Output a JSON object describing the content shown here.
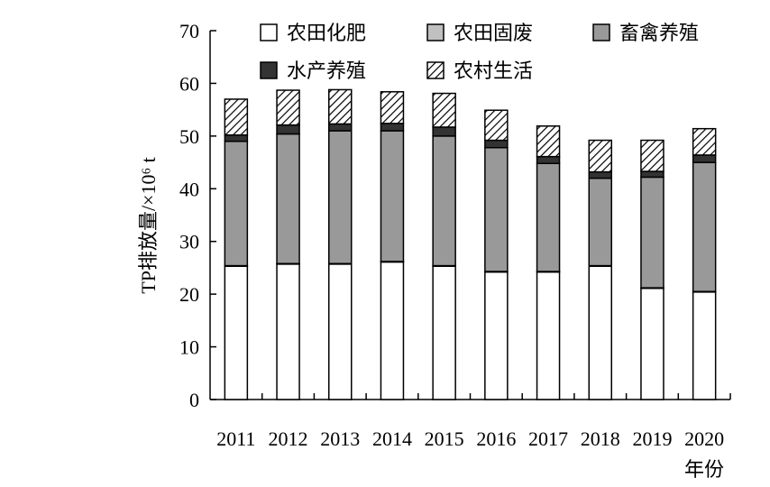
{
  "chart_data": {
    "type": "bar",
    "stacked": true,
    "categories": [
      "2011",
      "2012",
      "2013",
      "2014",
      "2015",
      "2016",
      "2017",
      "2018",
      "2019",
      "2020"
    ],
    "series": [
      {
        "name": "农田化肥",
        "color": "#ffffff",
        "pattern": "solid",
        "values": [
          25.3,
          25.7,
          25.7,
          26.1,
          25.3,
          24.2,
          24.2,
          25.3,
          21.1,
          20.4
        ]
      },
      {
        "name": "农田固废",
        "color": "#c0c0c0",
        "pattern": "solid",
        "values": [
          0.1,
          0.1,
          0.1,
          0.1,
          0.1,
          0.1,
          0.1,
          0.1,
          0.1,
          0.1
        ]
      },
      {
        "name": "畜禽养殖",
        "color": "#999999",
        "pattern": "solid",
        "values": [
          23.6,
          24.6,
          25.2,
          24.8,
          24.6,
          23.5,
          20.5,
          16.6,
          21.0,
          24.5
        ]
      },
      {
        "name": "水产养殖",
        "color": "#333333",
        "pattern": "solid",
        "values": [
          1.2,
          1.7,
          1.3,
          1.4,
          1.7,
          1.4,
          1.3,
          1.2,
          1.1,
          1.4
        ]
      },
      {
        "name": "农村生活",
        "color": "#ffffff",
        "pattern": "hatch",
        "values": [
          6.8,
          6.6,
          6.5,
          6.0,
          6.4,
          5.7,
          5.8,
          6.0,
          5.9,
          5.0
        ]
      }
    ],
    "ylabel": "TP排放量/×10⁶ t",
    "xlabel": "年份",
    "ylim": [
      0,
      70
    ],
    "yticks": [
      0,
      10,
      20,
      30,
      40,
      50,
      60,
      70
    ],
    "grid": false,
    "legend": "top"
  }
}
